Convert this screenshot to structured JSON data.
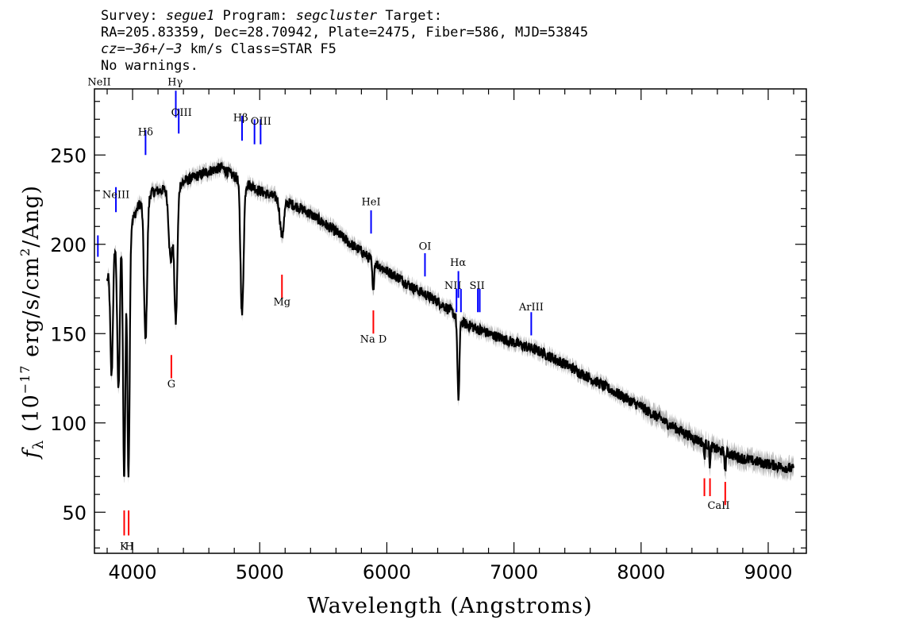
{
  "header": {
    "survey_label": "Survey:",
    "survey": "segue1",
    "program_label": "Program:",
    "program": "segcluster",
    "target_label": "Target:",
    "line2": "RA=205.83359, Dec=28.70942, Plate=2475, Fiber=586, MJD=53845",
    "cz_label": "cz=",
    "cz_value": "−36+/−3",
    "cz_rest": " km/s Class=STAR F5",
    "warnings": "No warnings."
  },
  "chart_data": {
    "type": "line",
    "xlabel": "Wavelength (Angstroms)",
    "ylabel_prefix": "f",
    "ylabel_sub": "λ",
    "ylabel_main": " (10",
    "ylabel_exp1": "−17",
    "ylabel_mid": " erg/s/cm",
    "ylabel_exp2": "2",
    "ylabel_end": "/Ang)",
    "xlim": [
      3700,
      9300
    ],
    "ylim": [
      27,
      287
    ],
    "xticks": [
      4000,
      5000,
      6000,
      7000,
      8000,
      9000
    ],
    "yticks": [
      50,
      100,
      150,
      200,
      250
    ],
    "xticks_minor_step": 200,
    "yticks_minor_step": 10,
    "continuum": [
      [
        3800,
        180
      ],
      [
        3860,
        200
      ],
      [
        3900,
        205
      ],
      [
        3950,
        208
      ],
      [
        4000,
        214
      ],
      [
        4050,
        222
      ],
      [
        4100,
        226
      ],
      [
        4150,
        229
      ],
      [
        4200,
        230
      ],
      [
        4300,
        231
      ],
      [
        4400,
        235
      ],
      [
        4500,
        238
      ],
      [
        4600,
        241
      ],
      [
        4700,
        243
      ],
      [
        4800,
        238
      ],
      [
        4900,
        234
      ],
      [
        5000,
        230
      ],
      [
        5100,
        227
      ],
      [
        5200,
        224
      ],
      [
        5300,
        221
      ],
      [
        5400,
        217
      ],
      [
        5500,
        212
      ],
      [
        5600,
        207
      ],
      [
        5700,
        201
      ],
      [
        5800,
        196
      ],
      [
        5900,
        190
      ],
      [
        6000,
        185
      ],
      [
        6100,
        181
      ],
      [
        6200,
        176
      ],
      [
        6300,
        172
      ],
      [
        6400,
        168
      ],
      [
        6500,
        163
      ],
      [
        6600,
        156
      ],
      [
        6700,
        153
      ],
      [
        6800,
        150
      ],
      [
        7000,
        145
      ],
      [
        7200,
        140
      ],
      [
        7400,
        133
      ],
      [
        7600,
        125
      ],
      [
        7800,
        117
      ],
      [
        8000,
        109
      ],
      [
        8200,
        100
      ],
      [
        8400,
        92
      ],
      [
        8600,
        85
      ],
      [
        8800,
        80
      ],
      [
        9000,
        77
      ],
      [
        9200,
        74
      ]
    ],
    "absorption": [
      [
        3835,
        65,
        10
      ],
      [
        3889,
        85,
        10
      ],
      [
        3934,
        140,
        9
      ],
      [
        3968,
        140,
        9
      ],
      [
        3970,
        0,
        0
      ],
      [
        4102,
        80,
        12
      ],
      [
        4300,
        40,
        15
      ],
      [
        4340,
        75,
        12
      ],
      [
        4861,
        75,
        12
      ],
      [
        5175,
        20,
        15
      ],
      [
        5892,
        18,
        6
      ],
      [
        6563,
        45,
        8
      ],
      [
        8498,
        8,
        4
      ],
      [
        8542,
        12,
        4
      ],
      [
        8662,
        12,
        4
      ]
    ],
    "emission_lines": [
      {
        "label": "NeII",
        "x": 3727,
        "y1": 193,
        "y2": 205,
        "lx": 3738,
        "ly": 289
      },
      {
        "label": "NeIII",
        "x": 3869,
        "y1": 218,
        "y2": 232,
        "lx": 3869,
        "ly": 226
      },
      {
        "label": "Hδ",
        "x": 4102,
        "y1": 250,
        "y2": 264,
        "lx": 4102,
        "ly": 261
      },
      {
        "label": "Hγ",
        "x": 4340,
        "y1": 271,
        "y2": 286,
        "lx": 4335,
        "ly": 289
      },
      {
        "label": "OIII",
        "x": 4363,
        "y1": 262,
        "y2": 276,
        "lx": 4385,
        "ly": 272
      },
      {
        "label": "Hβ",
        "x": 4861,
        "y1": 258,
        "y2": 272,
        "lx": 4850,
        "ly": 269
      },
      {
        "label": "OIII",
        "x": 4959,
        "y1": 256,
        "y2": 270,
        "lx": 0,
        "ly": 0
      },
      {
        "label": "OIII",
        "x": 5007,
        "y1": 256,
        "y2": 270,
        "lx": 5010,
        "ly": 267
      },
      {
        "label": "HeI",
        "x": 5876,
        "y1": 206,
        "y2": 219,
        "lx": 5876,
        "ly": 222
      },
      {
        "label": "OI",
        "x": 6300,
        "y1": 182,
        "y2": 195,
        "lx": 6300,
        "ly": 197
      },
      {
        "label": "NII",
        "x": 6548,
        "y1": 162,
        "y2": 175,
        "lx": 6520,
        "ly": 175
      },
      {
        "label": "Hα",
        "x": 6563,
        "y1": 170,
        "y2": 185,
        "lx": 6560,
        "ly": 188
      },
      {
        "label": "NII",
        "x": 6583,
        "y1": 162,
        "y2": 175,
        "lx": 0,
        "ly": 0
      },
      {
        "label": "SII",
        "x": 6716,
        "y1": 162,
        "y2": 175,
        "lx": 6710,
        "ly": 175
      },
      {
        "label": "SII",
        "x": 6731,
        "y1": 162,
        "y2": 175,
        "lx": 0,
        "ly": 0
      },
      {
        "label": "ArIII",
        "x": 7136,
        "y1": 149,
        "y2": 162,
        "lx": 7136,
        "ly": 163
      }
    ],
    "absorption_lines": [
      {
        "label": "K",
        "x": 3934,
        "y1": 37,
        "y2": 51,
        "lx": 3930,
        "ly": 29
      },
      {
        "label": "H",
        "x": 3969,
        "y1": 37,
        "y2": 51,
        "lx": 3975,
        "ly": 29
      },
      {
        "label": "G",
        "x": 4305,
        "y1": 125,
        "y2": 138,
        "lx": 4305,
        "ly": 120
      },
      {
        "label": "Mg",
        "x": 5175,
        "y1": 170,
        "y2": 183,
        "lx": 5175,
        "ly": 166
      },
      {
        "label": "Na D",
        "x": 5894,
        "y1": 150,
        "y2": 163,
        "lx": 5894,
        "ly": 145
      },
      {
        "label": "CaII",
        "x": 8498,
        "y1": 59,
        "y2": 69,
        "lx": 8610,
        "ly": 52
      },
      {
        "label": "CaII",
        "x": 8542,
        "y1": 59,
        "y2": 69,
        "lx": 0,
        "ly": 0
      },
      {
        "label": "CaII",
        "x": 8662,
        "y1": 54,
        "y2": 67,
        "lx": 0,
        "ly": 0
      }
    ],
    "colors": {
      "spectrum": "#000000",
      "error": "#b8b8b8",
      "emission": "#0000ff",
      "absorption": "#ff0000"
    }
  }
}
